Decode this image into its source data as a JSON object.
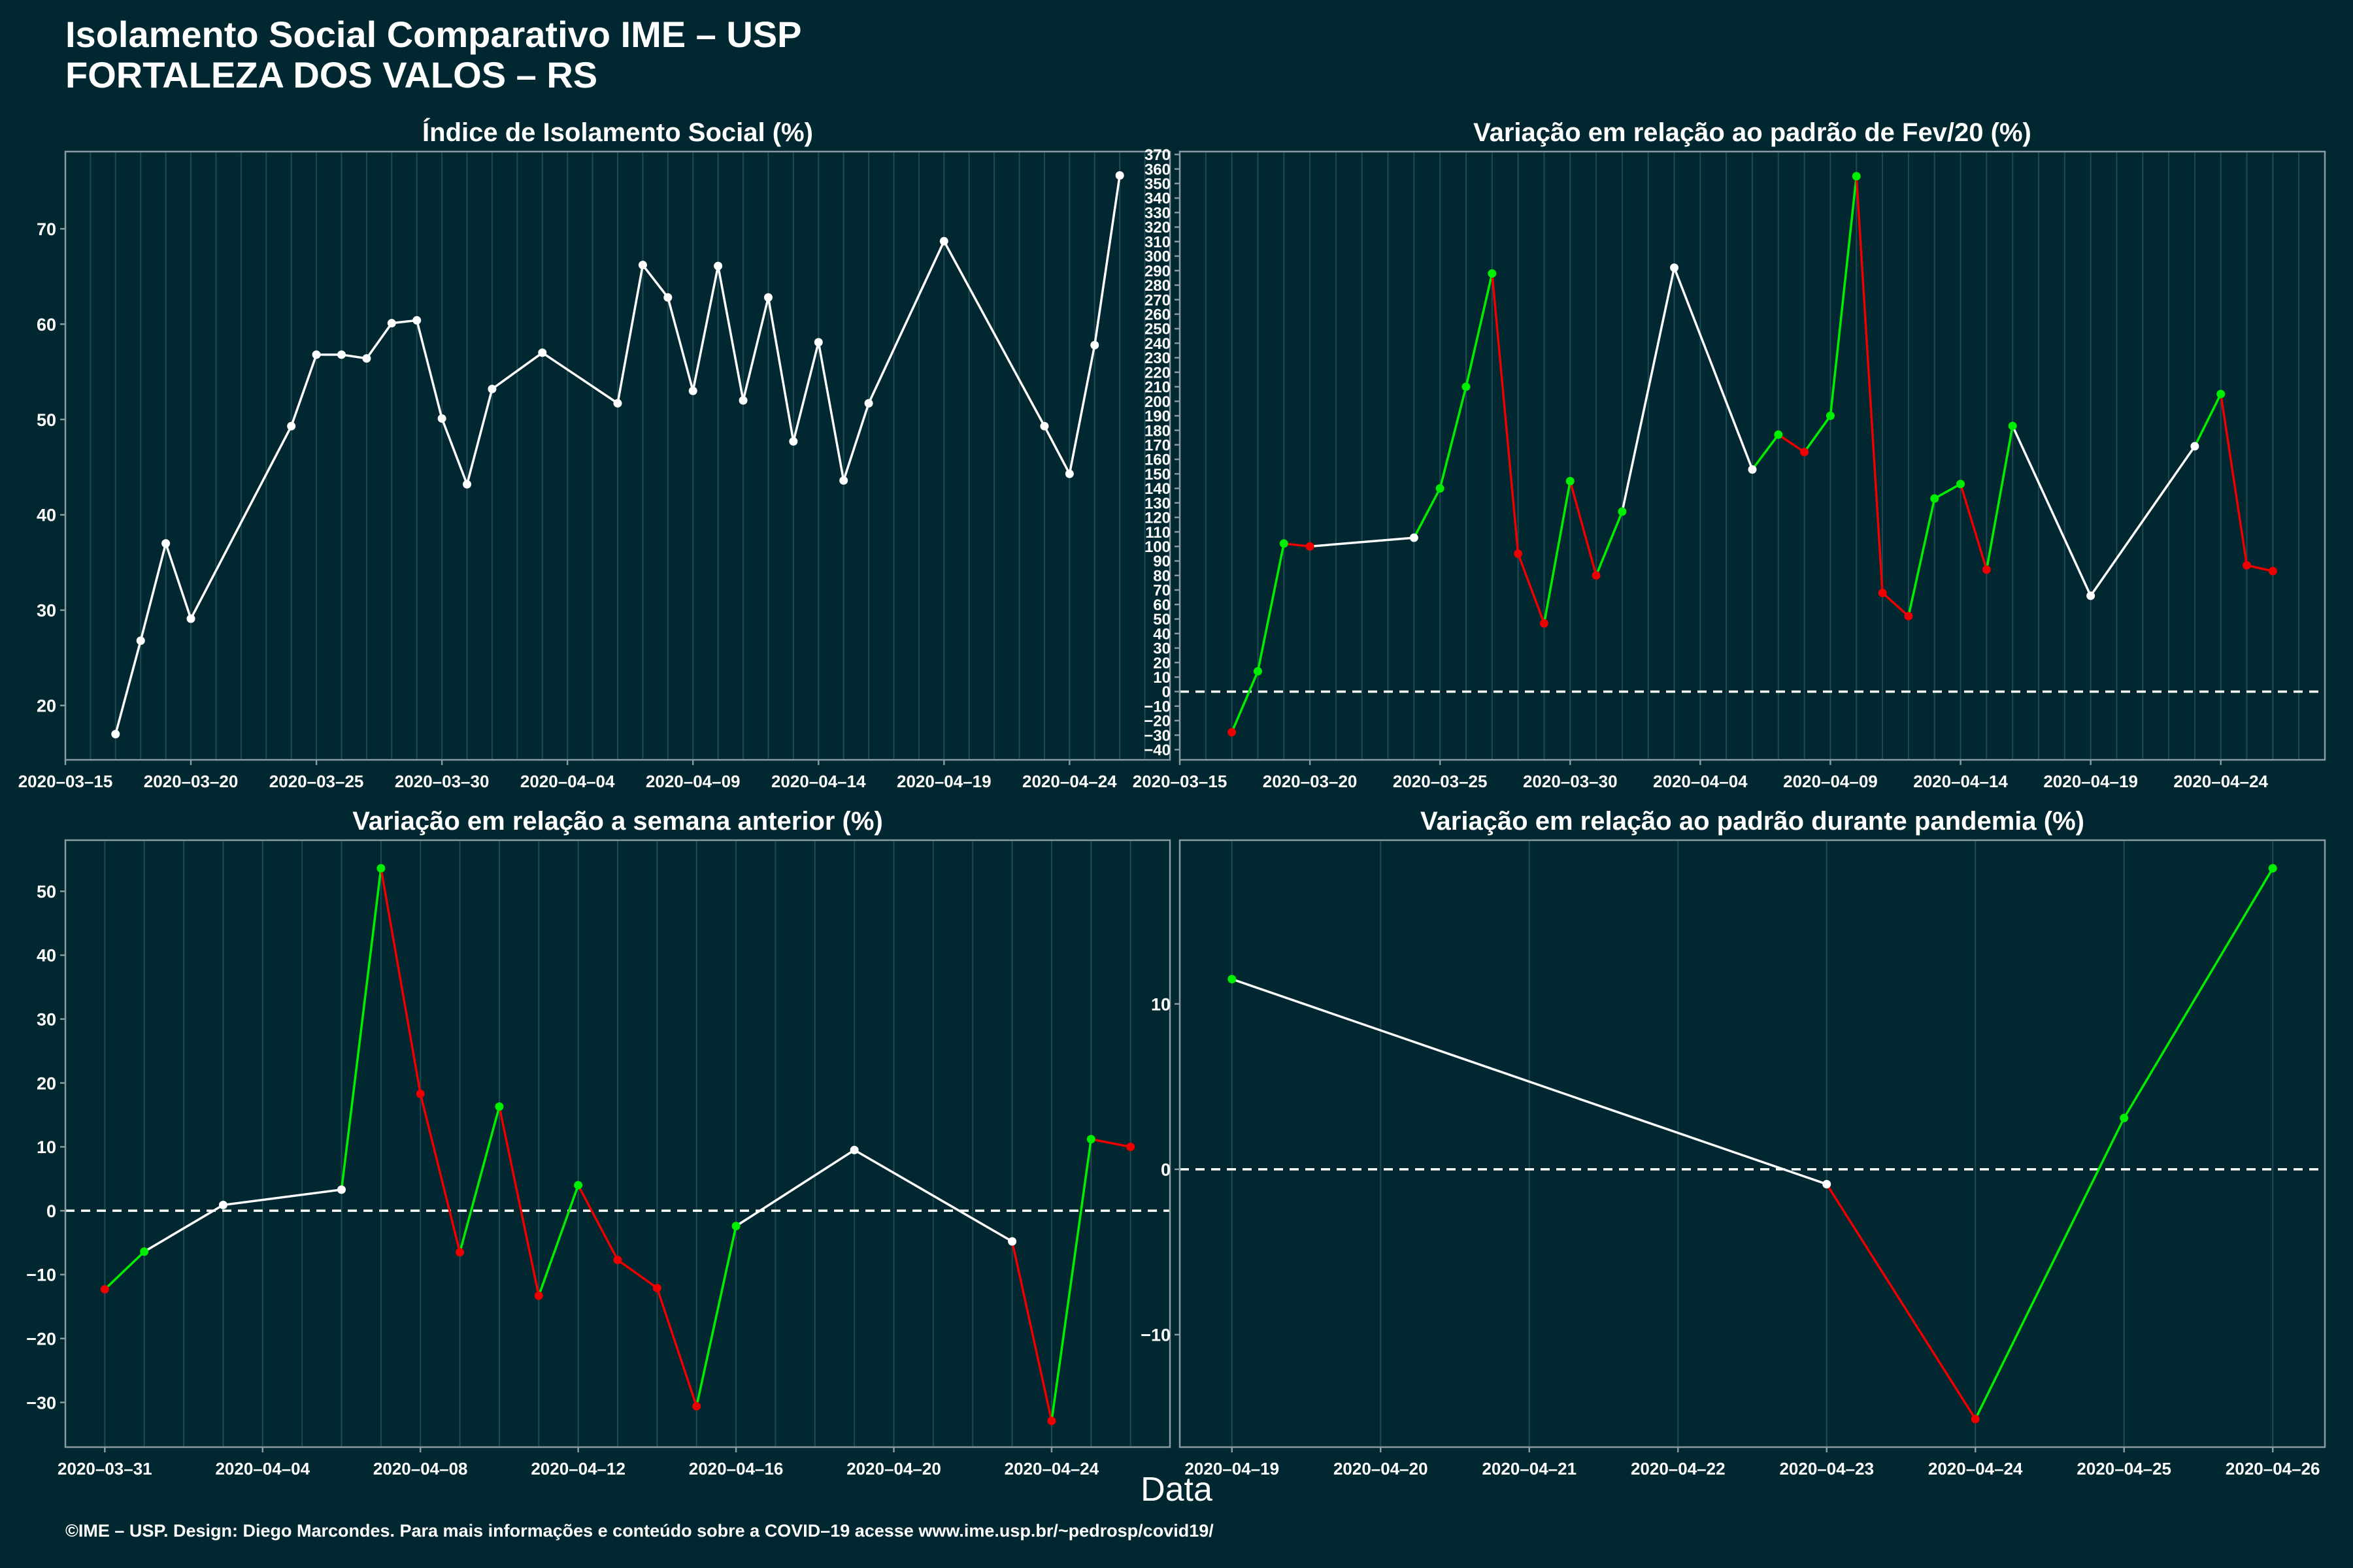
{
  "title": {
    "line1": "Isolamento Social Comparativo IME – USP",
    "line2": "FORTALEZA DOS VALOS – RS"
  },
  "xlabel": "Data",
  "footer": "©IME – USP. Design: Diego Marcondes. Para mais informações e conteúdo sobre a COVID–19 acesse www.ime.usp.br/~pedrosp/covid19/",
  "colors": {
    "background": "#012830",
    "panel": "#012830",
    "frame": "#8a9a9e",
    "grid": "#1f4a52",
    "neutral": "#ffffff",
    "increase": "#00ee00",
    "decrease": "#ee0000"
  },
  "chart_data": [
    {
      "id": "isolation-index",
      "type": "line",
      "title": "Índice de Isolamento Social (%)",
      "x_type": "date",
      "xlim": [
        "2020-03-15",
        "2020-04-28"
      ],
      "ylim": [
        14.3,
        78.1
      ],
      "x_ticks": [
        "2020-03-15",
        "2020-03-20",
        "2020-03-25",
        "2020-03-30",
        "2020-04-04",
        "2020-04-09",
        "2020-04-14",
        "2020-04-19",
        "2020-04-24"
      ],
      "y_ticks": [
        20,
        30,
        40,
        50,
        60,
        70
      ],
      "zero_line": false,
      "points": [
        {
          "x": "2020-03-17",
          "y": 17.0
        },
        {
          "x": "2020-03-18",
          "y": 26.8
        },
        {
          "x": "2020-03-19",
          "y": 37.0
        },
        {
          "x": "2020-03-20",
          "y": 29.1
        },
        {
          "x": "2020-03-24",
          "y": 49.3
        },
        {
          "x": "2020-03-25",
          "y": 56.8
        },
        {
          "x": "2020-03-26",
          "y": 56.8
        },
        {
          "x": "2020-03-27",
          "y": 56.4
        },
        {
          "x": "2020-03-28",
          "y": 60.1
        },
        {
          "x": "2020-03-29",
          "y": 60.4
        },
        {
          "x": "2020-03-30",
          "y": 50.1
        },
        {
          "x": "2020-03-31",
          "y": 43.2
        },
        {
          "x": "2020-04-01",
          "y": 53.2
        },
        {
          "x": "2020-04-03",
          "y": 57.0
        },
        {
          "x": "2020-04-06",
          "y": 51.7
        },
        {
          "x": "2020-04-07",
          "y": 66.2
        },
        {
          "x": "2020-04-08",
          "y": 62.8
        },
        {
          "x": "2020-04-09",
          "y": 53.0
        },
        {
          "x": "2020-04-10",
          "y": 66.1
        },
        {
          "x": "2020-04-11",
          "y": 52.0
        },
        {
          "x": "2020-04-12",
          "y": 62.8
        },
        {
          "x": "2020-04-13",
          "y": 47.7
        },
        {
          "x": "2020-04-14",
          "y": 58.1
        },
        {
          "x": "2020-04-15",
          "y": 43.6
        },
        {
          "x": "2020-04-16",
          "y": 51.7
        },
        {
          "x": "2020-04-19",
          "y": 68.7
        },
        {
          "x": "2020-04-23",
          "y": 49.3
        },
        {
          "x": "2020-04-24",
          "y": 44.3
        },
        {
          "x": "2020-04-25",
          "y": 57.8
        },
        {
          "x": "2020-04-26",
          "y": 75.6
        }
      ]
    },
    {
      "id": "vs-feb",
      "type": "line",
      "title": "Variação em relação ao padrão de Fev/20 (%)",
      "x_type": "date",
      "xlim": [
        "2020-03-15",
        "2020-04-28"
      ],
      "ylim": [
        -47,
        372
      ],
      "x_ticks": [
        "2020-03-15",
        "2020-03-20",
        "2020-03-25",
        "2020-03-30",
        "2020-04-04",
        "2020-04-09",
        "2020-04-14",
        "2020-04-19",
        "2020-04-24"
      ],
      "y_ticks": [
        -40,
        -30,
        -20,
        -10,
        0,
        10,
        20,
        30,
        40,
        50,
        60,
        70,
        80,
        90,
        100,
        110,
        120,
        130,
        140,
        150,
        160,
        170,
        180,
        190,
        200,
        210,
        220,
        230,
        240,
        250,
        260,
        270,
        280,
        290,
        300,
        310,
        320,
        330,
        340,
        350,
        360,
        370
      ],
      "zero_line": true,
      "points": [
        {
          "x": "2020-03-17",
          "y": -28
        },
        {
          "x": "2020-03-18",
          "y": 14
        },
        {
          "x": "2020-03-19",
          "y": 102
        },
        {
          "x": "2020-03-20",
          "y": 100
        },
        {
          "x": "2020-03-24",
          "y": 106
        },
        {
          "x": "2020-03-25",
          "y": 140
        },
        {
          "x": "2020-03-26",
          "y": 210
        },
        {
          "x": "2020-03-27",
          "y": 288
        },
        {
          "x": "2020-03-28",
          "y": 95
        },
        {
          "x": "2020-03-29",
          "y": 47
        },
        {
          "x": "2020-03-30",
          "y": 145
        },
        {
          "x": "2020-03-31",
          "y": 80
        },
        {
          "x": "2020-04-01",
          "y": 124
        },
        {
          "x": "2020-04-03",
          "y": 292
        },
        {
          "x": "2020-04-06",
          "y": 153
        },
        {
          "x": "2020-04-07",
          "y": 177
        },
        {
          "x": "2020-04-08",
          "y": 165
        },
        {
          "x": "2020-04-09",
          "y": 190
        },
        {
          "x": "2020-04-10",
          "y": 355
        },
        {
          "x": "2020-04-11",
          "y": 68
        },
        {
          "x": "2020-04-12",
          "y": 52
        },
        {
          "x": "2020-04-13",
          "y": 133
        },
        {
          "x": "2020-04-14",
          "y": 143
        },
        {
          "x": "2020-04-15",
          "y": 84
        },
        {
          "x": "2020-04-16",
          "y": 183
        },
        {
          "x": "2020-04-19",
          "y": 66
        },
        {
          "x": "2020-04-23",
          "y": 169
        },
        {
          "x": "2020-04-24",
          "y": 205
        },
        {
          "x": "2020-04-25",
          "y": 87
        },
        {
          "x": "2020-04-26",
          "y": 83
        }
      ]
    },
    {
      "id": "vs-previous-week",
      "type": "line",
      "title": "Variação em relação a semana anterior (%)",
      "x_type": "date",
      "xlim": [
        "2020-03-30",
        "2020-04-27"
      ],
      "ylim": [
        -37,
        58
      ],
      "x_ticks": [
        "2020-03-31",
        "2020-04-04",
        "2020-04-08",
        "2020-04-12",
        "2020-04-16",
        "2020-04-20",
        "2020-04-24"
      ],
      "y_ticks": [
        -30,
        -20,
        -10,
        0,
        10,
        20,
        30,
        40,
        50
      ],
      "zero_line": true,
      "points": [
        {
          "x": "2020-03-31",
          "y": -12.3
        },
        {
          "x": "2020-04-01",
          "y": -6.4
        },
        {
          "x": "2020-04-03",
          "y": 0.9
        },
        {
          "x": "2020-04-06",
          "y": 3.3
        },
        {
          "x": "2020-04-07",
          "y": 53.6
        },
        {
          "x": "2020-04-08",
          "y": 18.3
        },
        {
          "x": "2020-04-09",
          "y": -6.5
        },
        {
          "x": "2020-04-10",
          "y": 16.3
        },
        {
          "x": "2020-04-11",
          "y": -13.3
        },
        {
          "x": "2020-04-12",
          "y": 4.0
        },
        {
          "x": "2020-04-13",
          "y": -7.7
        },
        {
          "x": "2020-04-14",
          "y": -12.1
        },
        {
          "x": "2020-04-15",
          "y": -30.6
        },
        {
          "x": "2020-04-16",
          "y": -2.4
        },
        {
          "x": "2020-04-19",
          "y": 9.5
        },
        {
          "x": "2020-04-23",
          "y": -4.8
        },
        {
          "x": "2020-04-24",
          "y": -32.9
        },
        {
          "x": "2020-04-25",
          "y": 11.2
        },
        {
          "x": "2020-04-26",
          "y": 10.0
        }
      ]
    },
    {
      "id": "vs-pandemic",
      "type": "line",
      "title": "Variação em relação ao padrão durante pandemia (%)",
      "x_type": "date",
      "xlim": [
        "2020-04-18T15:35",
        "2020-04-26T08:25"
      ],
      "ylim": [
        -16.8,
        19.9
      ],
      "x_ticks": [
        "2020-04-19",
        "2020-04-20",
        "2020-04-21",
        "2020-04-22",
        "2020-04-23",
        "2020-04-24",
        "2020-04-25",
        "2020-04-26"
      ],
      "y_ticks": [
        -10,
        0,
        10
      ],
      "zero_line": true,
      "points": [
        {
          "x": "2020-04-19",
          "y": 11.5
        },
        {
          "x": "2020-04-23",
          "y": -0.9
        },
        {
          "x": "2020-04-24",
          "y": -15.1
        },
        {
          "x": "2020-04-25",
          "y": 3.1
        },
        {
          "x": "2020-04-26",
          "y": 18.2
        }
      ]
    }
  ]
}
